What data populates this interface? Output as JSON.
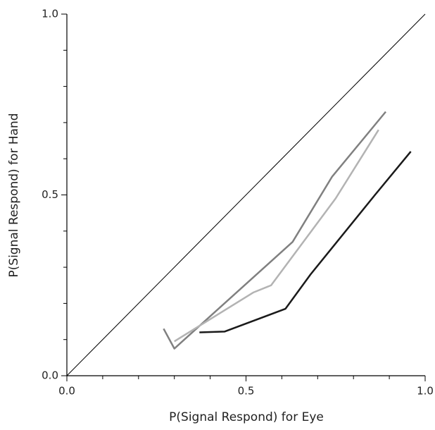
{
  "chart_data": {
    "type": "line",
    "xlabel": "P(Signal Respond) for Eye",
    "ylabel": "P(Signal Respond) for Hand",
    "xlim": [
      0,
      1
    ],
    "ylim": [
      0,
      1
    ],
    "xticks": [
      {
        "value": 0,
        "label": "0.0"
      },
      0.5,
      {
        "value": 1,
        "label": "1.0"
      }
    ],
    "yticks": [
      {
        "value": 0,
        "label": "0.0"
      },
      0.5,
      {
        "value": 1,
        "label": "1.0"
      }
    ],
    "xminorticks": [
      0.1,
      0.2,
      0.3,
      0.4,
      0.6,
      0.7,
      0.8,
      0.9
    ],
    "yminorticks": [
      0.1,
      0.2,
      0.3,
      0.4,
      0.6,
      0.7,
      0.8,
      0.9
    ],
    "series": [
      {
        "color": "#000000",
        "width": 1,
        "x": [
          0,
          1
        ],
        "values": [
          0,
          1
        ]
      },
      {
        "color": "#808080",
        "width": 2.5,
        "x": [
          0.27,
          0.3,
          0.63,
          0.74,
          0.89
        ],
        "values": [
          0.13,
          0.075,
          0.37,
          0.55,
          0.73
        ]
      },
      {
        "color": "#b3b3b3",
        "width": 2.5,
        "x": [
          0.3,
          0.52,
          0.57,
          0.75,
          0.87
        ],
        "values": [
          0.095,
          0.23,
          0.25,
          0.49,
          0.68
        ]
      },
      {
        "color": "#1a1a1a",
        "width": 2.5,
        "x": [
          0.37,
          0.44,
          0.61,
          0.68,
          0.86,
          0.96
        ],
        "values": [
          0.12,
          0.122,
          0.185,
          0.28,
          0.5,
          0.62
        ]
      }
    ]
  }
}
